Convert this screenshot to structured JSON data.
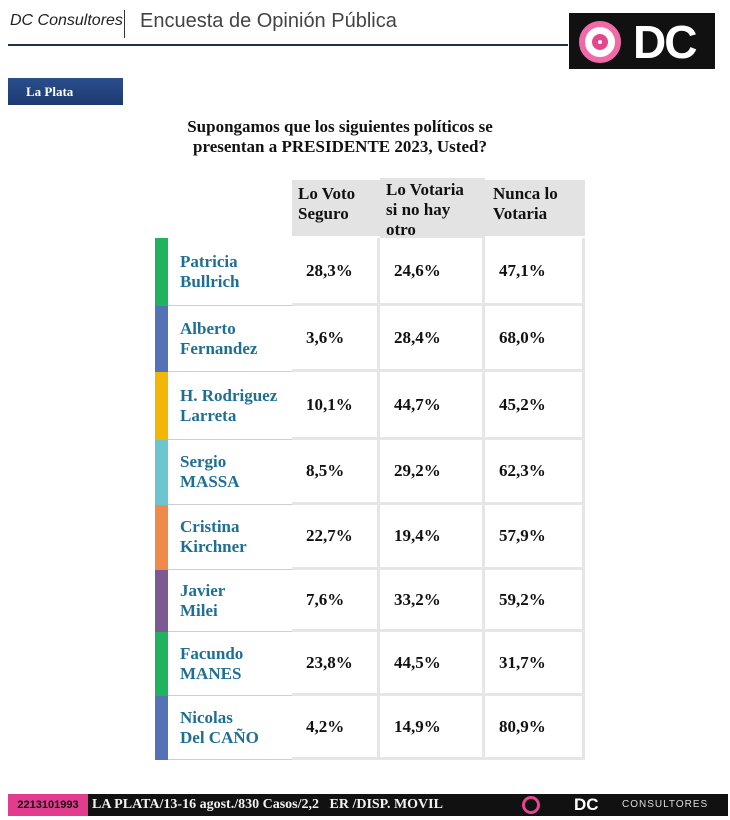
{
  "header": {
    "brand": "DC Consultores",
    "title": "Encuesta de Opinión Pública",
    "logo_text": "DC",
    "logo_ring_color": "#e4478f"
  },
  "city_tag": "La Plata",
  "question": {
    "line1": "Supongamos que los siguientes políticos se",
    "line2": "presentan a PRESIDENTE 2023, Usted?"
  },
  "columns": [
    {
      "line1": "Lo Voto",
      "line2": "Seguro",
      "line3": ""
    },
    {
      "line1": "Lo Votaria",
      "line2": "si no hay",
      "line3": "otro"
    },
    {
      "line1": "Nunca lo",
      "line2": "Votaria",
      "line3": ""
    }
  ],
  "rows": [
    {
      "line1": "Patricia",
      "line2": "Bullrich",
      "color": "#1fb35f",
      "values": [
        "28,3%",
        "24,6%",
        "47,1%"
      ]
    },
    {
      "line1": "Alberto",
      "line2": "Fernandez",
      "color": "#5572b7",
      "values": [
        "3,6%",
        "28,4%",
        "68,0%"
      ]
    },
    {
      "line1": "H. Rodriguez",
      "line2": "Larreta",
      "color": "#f2b705",
      "values": [
        "10,1%",
        "44,7%",
        "45,2%"
      ]
    },
    {
      "line1": "Sergio",
      "line2": "MASSA",
      "color": "#6cc6cf",
      "values": [
        "8,5%",
        "29,2%",
        "62,3%"
      ]
    },
    {
      "line1": "Cristina",
      "line2": "Kirchner",
      "color": "#f08a4b",
      "values": [
        "22,7%",
        "19,4%",
        "57,9%"
      ]
    },
    {
      "line1": "Javier",
      "line2": "Milei",
      "color": "#7b5a93",
      "values": [
        "7,6%",
        "33,2%",
        "59,2%"
      ]
    },
    {
      "line1": "Facundo",
      "line2": "MANES",
      "color": "#1fb35f",
      "values": [
        "23,8%",
        "44,5%",
        "31,7%"
      ]
    },
    {
      "line1": "Nicolas",
      "line2": "Del CAÑO",
      "color": "#5572b7",
      "values": [
        "4,2%",
        "14,9%",
        "80,9%"
      ]
    }
  ],
  "footer": {
    "phone": "2213101993",
    "details": "LA PLATA/13-16 agost./830 Casos/2,2   ER /DISP. MOVIL",
    "logo_text": "DC",
    "consultores": "CONSULTORES"
  }
}
